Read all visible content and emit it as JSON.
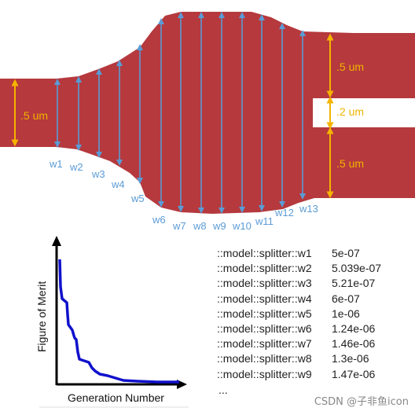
{
  "waveguide": {
    "fill_color": "#b5393d",
    "arrow_color": "#5b9bd5",
    "output_arrow_color": "#f5b400",
    "input_width_label": ".5 um",
    "output_labels": [
      ".5 um",
      ".2 um",
      ".5 um"
    ],
    "width_labels": [
      "w1",
      "w2",
      "w3",
      "w4",
      "w5",
      "w6",
      "w7",
      "w8",
      "w9",
      "w10",
      "w11",
      "w12",
      "w13"
    ]
  },
  "merit_plot": {
    "ylabel": "Figure of Merit",
    "xlabel": "Generation Number",
    "curve_color": "#1111cc"
  },
  "parameters": [
    {
      "name": "::model::splitter::w1",
      "value": "5e-07"
    },
    {
      "name": "::model::splitter::w2",
      "value": "5.039e-07"
    },
    {
      "name": "::model::splitter::w3",
      "value": "5.21e-07"
    },
    {
      "name": "::model::splitter::w4",
      "value": "6e-07"
    },
    {
      "name": "::model::splitter::w5",
      "value": "1e-06"
    },
    {
      "name": "::model::splitter::w6",
      "value": "1.24e-06"
    },
    {
      "name": "::model::splitter::w7",
      "value": "1.46e-06"
    },
    {
      "name": "::model::splitter::w8",
      "value": "1.3e-06"
    },
    {
      "name": "::model::splitter::w9",
      "value": "1.47e-06"
    }
  ],
  "parameters_ellipsis": "...",
  "watermark": "CSDN @子非鱼icon"
}
